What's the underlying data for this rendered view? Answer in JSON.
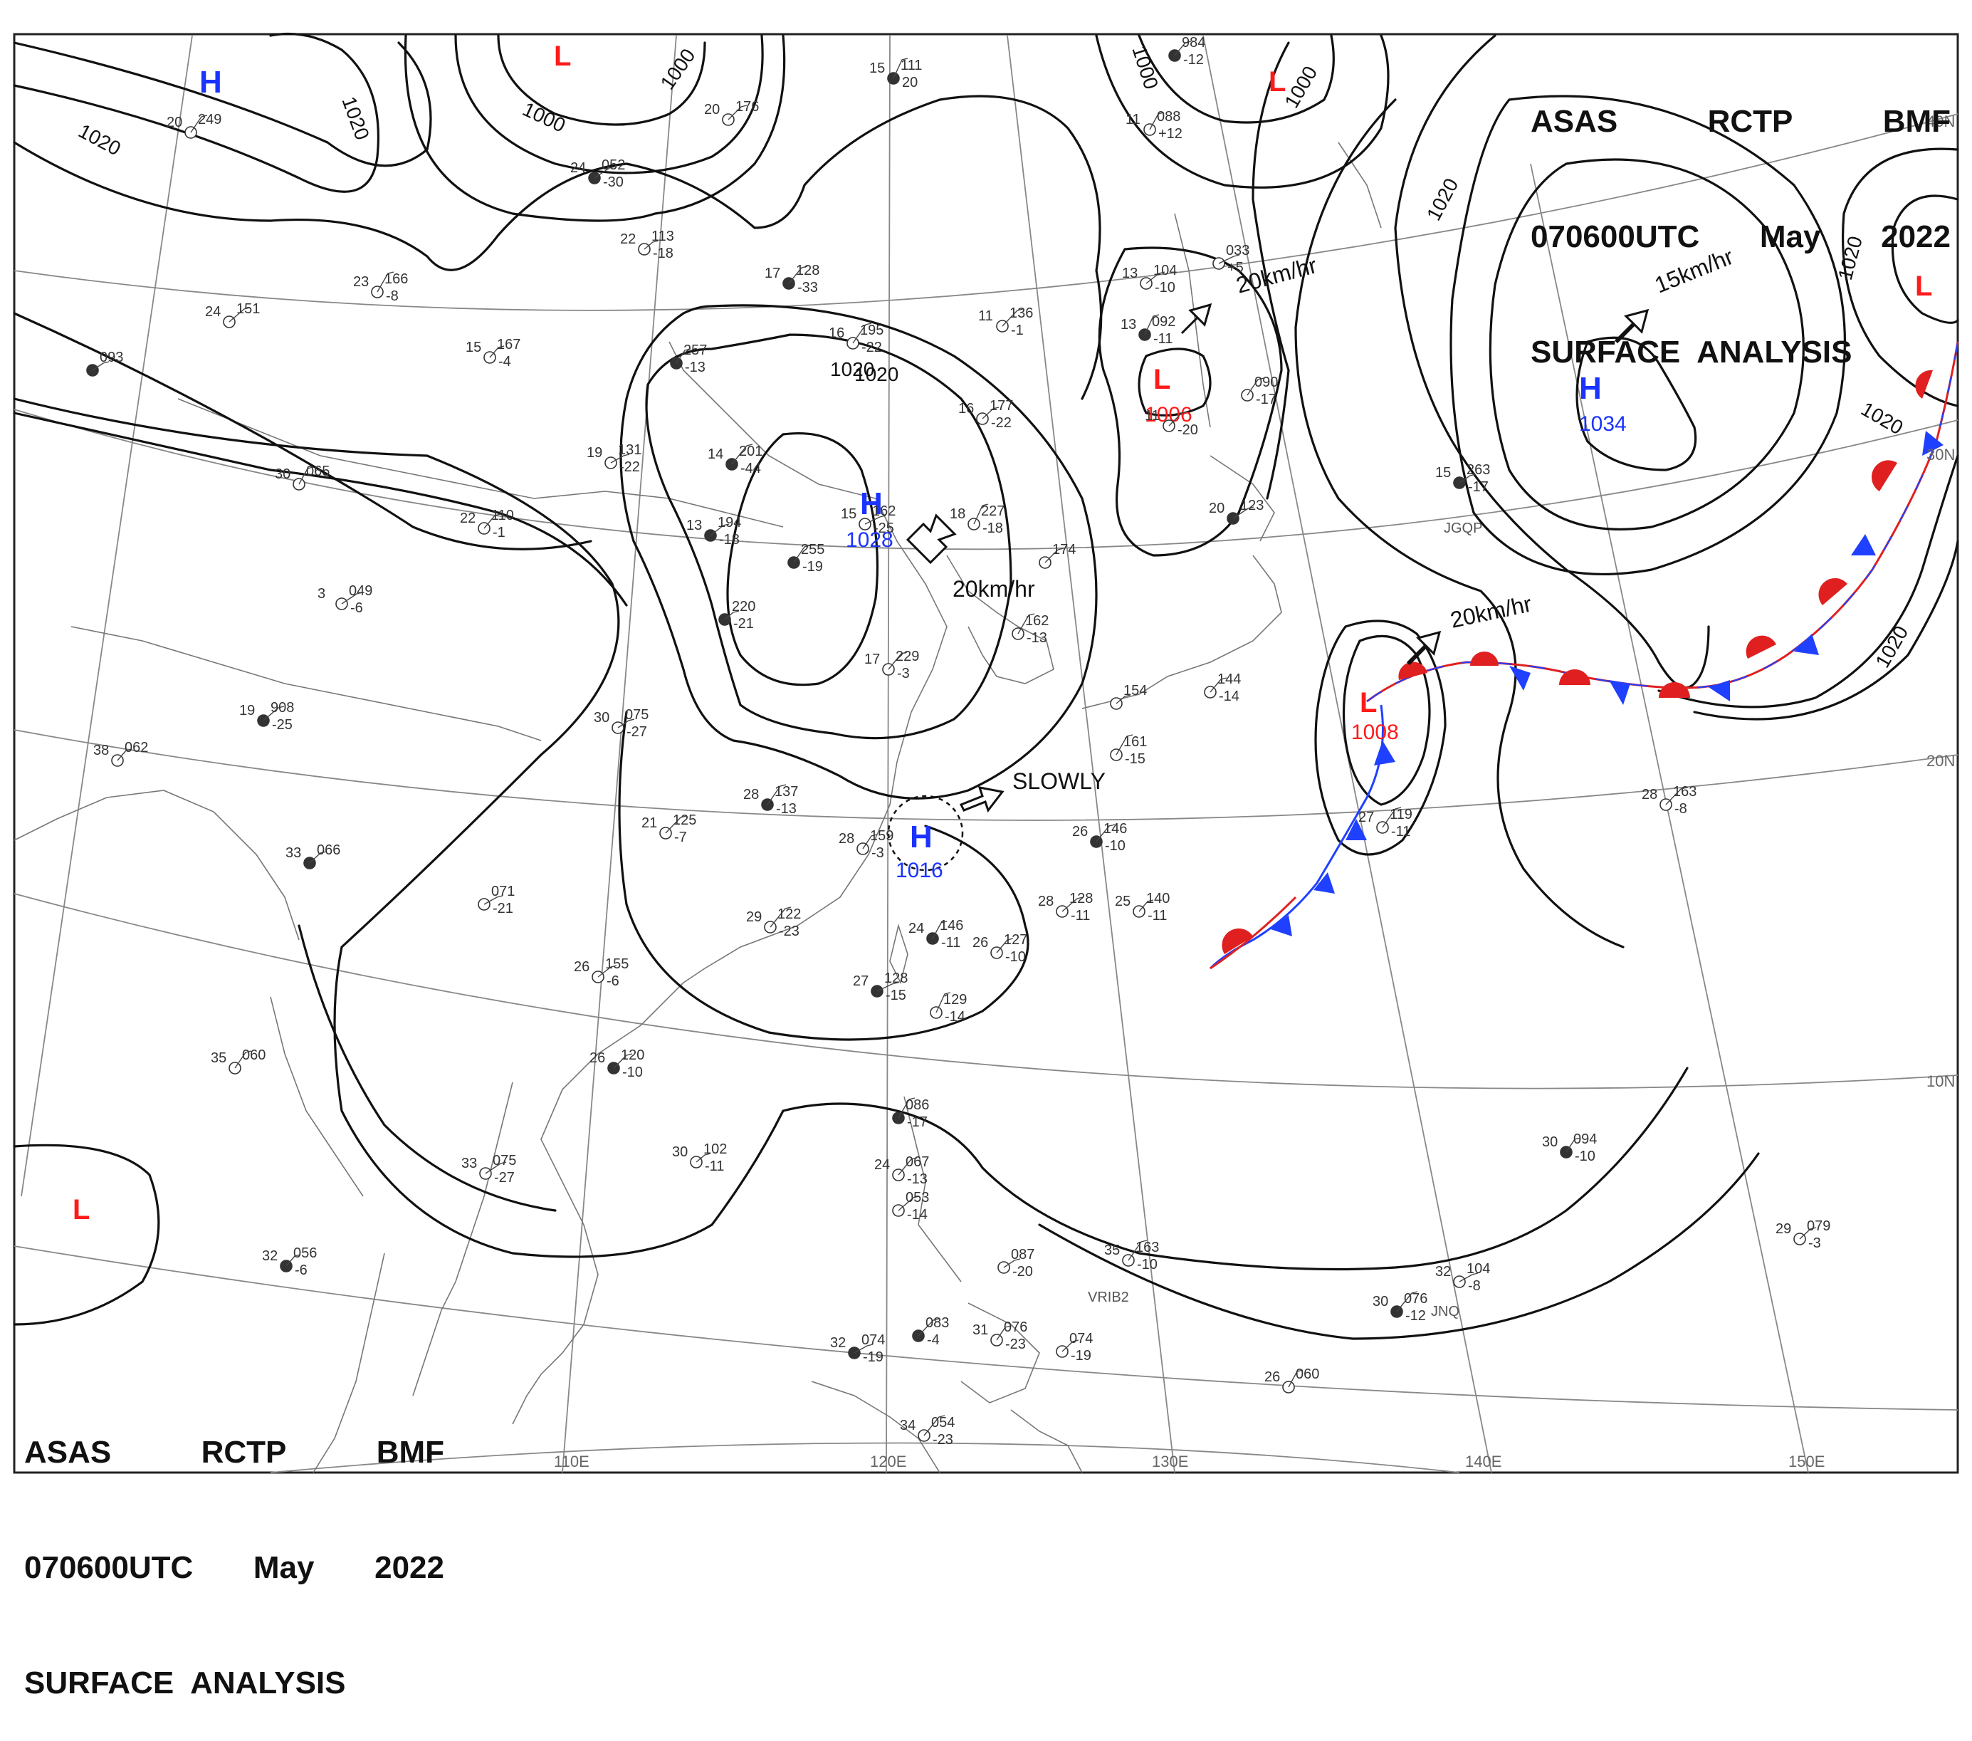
{
  "header": {
    "line1": [
      "ASAS",
      "RCTP",
      "BMF"
    ],
    "line2": [
      "070600UTC",
      "May",
      "2022"
    ],
    "line3": "SURFACE  ANALYSIS"
  },
  "colors": {
    "high": "#1a33ff",
    "low": "#ff1a1a",
    "isobar": "#111111",
    "geo": "#777777"
  },
  "longitudes": [
    "110E",
    "120E",
    "130E",
    "140E",
    "150E"
  ],
  "latitudes": [
    "40N",
    "30N",
    "20N",
    "10N"
  ],
  "isobar_labels": [
    "1020",
    "1020",
    "1000",
    "1000",
    "1000",
    "1000",
    "1020",
    "1020",
    "1020",
    "1020",
    "1020",
    "1020"
  ],
  "pressure_centers": [
    {
      "type": "H",
      "value": ""
    },
    {
      "type": "L",
      "value": ""
    },
    {
      "type": "L",
      "value": ""
    },
    {
      "type": "H",
      "value": "1028"
    },
    {
      "type": "L",
      "value": "1006"
    },
    {
      "type": "H",
      "value": "1034"
    },
    {
      "type": "L",
      "value": ""
    },
    {
      "type": "L",
      "value": "1008"
    },
    {
      "type": "H",
      "value": "1016"
    },
    {
      "type": "L",
      "value": ""
    }
  ],
  "movements": [
    "20km/hr",
    "15km/hr",
    "20km/hr",
    "20km/hr",
    "SLOWLY"
  ],
  "stations": [
    {
      "t": "15",
      "p": "111",
      "d": "20"
    },
    {
      "t": "20",
      "p": "249",
      "d": ""
    },
    {
      "t": "20",
      "p": "176",
      "d": ""
    },
    {
      "t": "24",
      "p": "052",
      "d": "-30"
    },
    {
      "t": "22",
      "p": "113",
      "d": "-18"
    },
    {
      "t": "23",
      "p": "166",
      "d": "-8"
    },
    {
      "t": "17",
      "p": "128",
      "d": "-33"
    },
    {
      "t": "24",
      "p": "151",
      "d": ""
    },
    {
      "t": "15",
      "p": "167",
      "d": "-4"
    },
    {
      "t": "",
      "p": "093",
      "d": ""
    },
    {
      "t": "16",
      "p": "195",
      "d": "-22"
    },
    {
      "t": "11",
      "p": "136",
      "d": "-1"
    },
    {
      "t": "",
      "p": "257",
      "d": "-13"
    },
    {
      "t": "16",
      "p": "177",
      "d": "-22"
    },
    {
      "t": "19",
      "p": "131",
      "d": "-22"
    },
    {
      "t": "14",
      "p": "201",
      "d": "-44"
    },
    {
      "t": "30",
      "p": "065",
      "d": ""
    },
    {
      "t": "22",
      "p": "110",
      "d": "-1"
    },
    {
      "t": "13",
      "p": "194",
      "d": "-18"
    },
    {
      "t": "15",
      "p": "162",
      "d": "-25"
    },
    {
      "t": "18",
      "p": "227",
      "d": "-18"
    },
    {
      "t": "",
      "p": "255",
      "d": "-19"
    },
    {
      "t": "",
      "p": "174",
      "d": ""
    },
    {
      "t": "3",
      "p": "049",
      "d": "-6"
    },
    {
      "t": "",
      "p": "220",
      "d": "-21"
    },
    {
      "t": "",
      "p": "162",
      "d": "-13"
    },
    {
      "t": "17",
      "p": "229",
      "d": "-3"
    },
    {
      "t": "19",
      "p": "908",
      "d": "-25"
    },
    {
      "t": "38",
      "p": "062",
      "d": ""
    },
    {
      "t": "30",
      "p": "075",
      "d": "-27"
    },
    {
      "t": "28",
      "p": "137",
      "d": "-13"
    },
    {
      "t": "21",
      "p": "125",
      "d": "-7"
    },
    {
      "t": "28",
      "p": "159",
      "d": "-3"
    },
    {
      "t": "33",
      "p": "066",
      "d": ""
    },
    {
      "t": "",
      "p": "071",
      "d": "-21"
    },
    {
      "t": "29",
      "p": "122",
      "d": "-23"
    },
    {
      "t": "24",
      "p": "146",
      "d": "-11"
    },
    {
      "t": "26",
      "p": "127",
      "d": "-10"
    },
    {
      "t": "26",
      "p": "155",
      "d": "-6"
    },
    {
      "t": "27",
      "p": "128",
      "d": "-15"
    },
    {
      "t": "",
      "p": "129",
      "d": "-14"
    },
    {
      "t": "35",
      "p": "060",
      "d": ""
    },
    {
      "t": "26",
      "p": "120",
      "d": "-10"
    },
    {
      "t": "33",
      "p": "075",
      "d": "-27"
    },
    {
      "t": "30",
      "p": "102",
      "d": "-11"
    },
    {
      "t": "",
      "p": "086",
      "d": "-17"
    },
    {
      "t": "24",
      "p": "067",
      "d": "-13"
    },
    {
      "t": "",
      "p": "053",
      "d": "-14"
    },
    {
      "t": "32",
      "p": "056",
      "d": "-6"
    },
    {
      "t": "",
      "p": "087",
      "d": "-20"
    },
    {
      "t": "35",
      "p": "163",
      "d": "-10"
    },
    {
      "t": "",
      "p": "083",
      "d": "-4"
    },
    {
      "t": "31",
      "p": "076",
      "d": "-23"
    },
    {
      "t": "",
      "p": "074",
      "d": "-19"
    },
    {
      "t": "32",
      "p": "074",
      "d": "-19"
    },
    {
      "t": "34",
      "p": "054",
      "d": "-23"
    },
    {
      "t": "11",
      "p": "088",
      "d": "+12"
    },
    {
      "t": "",
      "p": "984",
      "d": "-12"
    },
    {
      "t": "13",
      "p": "104",
      "d": "-10"
    },
    {
      "t": "",
      "p": "033",
      "d": "+5"
    },
    {
      "t": "13",
      "p": "092",
      "d": "-11"
    },
    {
      "t": "",
      "p": "090",
      "d": "-17"
    },
    {
      "t": "11",
      "p": "",
      "d": "-20"
    },
    {
      "t": "20",
      "p": "123",
      "d": ""
    },
    {
      "t": "",
      "p": "154",
      "d": ""
    },
    {
      "t": "",
      "p": "161",
      "d": "-15"
    },
    {
      "t": "26",
      "p": "146",
      "d": "-10"
    },
    {
      "t": "28",
      "p": "128",
      "d": "-11"
    },
    {
      "t": "25",
      "p": "140",
      "d": "-11"
    },
    {
      "t": "15",
      "p": "263",
      "d": "-17"
    },
    {
      "t": "27",
      "p": "119",
      "d": "-11"
    },
    {
      "t": "28",
      "p": "163",
      "d": "-8"
    },
    {
      "t": "30",
      "p": "094",
      "d": "-10"
    },
    {
      "t": "29",
      "p": "079",
      "d": "-3"
    },
    {
      "t": "32",
      "p": "104",
      "d": "-8"
    },
    {
      "t": "30",
      "p": "076",
      "d": "-12"
    },
    {
      "t": "26",
      "p": "060",
      "d": ""
    },
    {
      "t": "",
      "p": "144",
      "d": "-14"
    }
  ],
  "station_ids": [
    "VRIB2",
    "JNQ",
    "JGQP"
  ]
}
